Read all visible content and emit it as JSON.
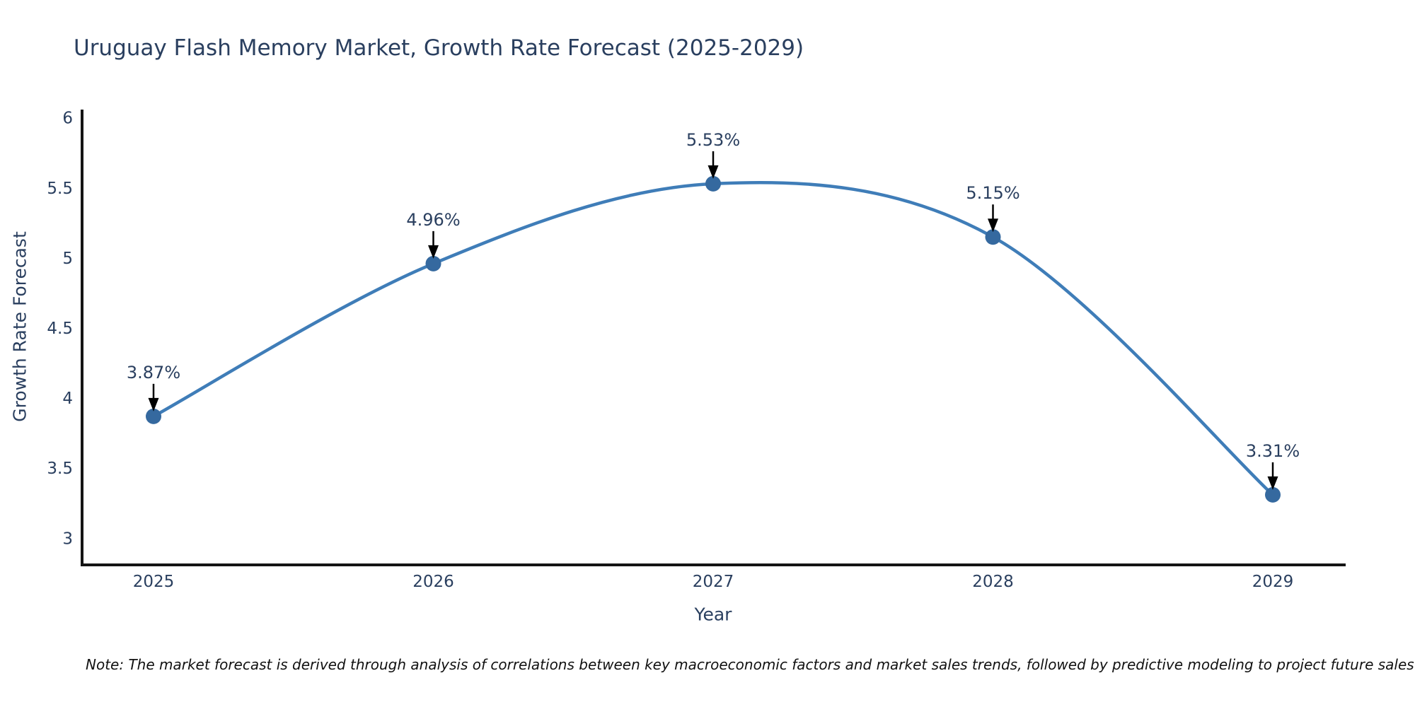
{
  "title": "Uruguay Flash Memory Market, Growth Rate Forecast (2025-2029)",
  "note": "Note: The market forecast is derived through analysis of correlations between key macroeconomic factors and market sales trends, followed by predictive modeling to project future sales",
  "colors": {
    "title_text": "#2a3f5f",
    "tick_text": "#2a3f5f",
    "annotation_text": "#2a3f5f",
    "axis_line": "#141414",
    "arrow": "#000000",
    "line": "#3f7db8",
    "marker": "#35699f"
  },
  "chart_data": {
    "type": "line",
    "title": "Uruguay Flash Memory Market, Growth Rate Forecast (2025-2029)",
    "xlabel": "Year",
    "ylabel": "Growth Rate Forecast",
    "x": [
      2025,
      2026,
      2027,
      2028,
      2029
    ],
    "series": [
      {
        "name": "Growth Rate Forecast",
        "values": [
          3.87,
          4.96,
          5.53,
          5.15,
          3.31
        ]
      }
    ],
    "point_labels": [
      "3.87%",
      "4.96%",
      "5.53%",
      "5.15%",
      "3.31%"
    ],
    "x_tick_labels": [
      "2025",
      "2026",
      "2027",
      "2028",
      "2029"
    ],
    "y_ticks": [
      3,
      3.5,
      4,
      4.5,
      5,
      5.5,
      6
    ],
    "ylim": [
      2.8,
      6.2
    ],
    "xlim": [
      2024.74,
      2029.26
    ],
    "grid": false,
    "legend": "none",
    "line_shape": "spline",
    "marker": "circle",
    "annotations": "value labels with black down arrows above each point"
  }
}
